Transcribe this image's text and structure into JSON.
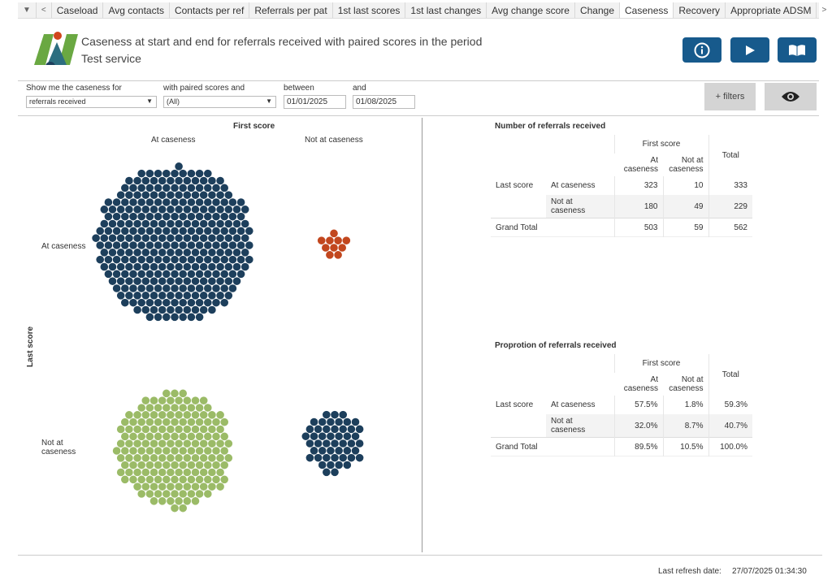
{
  "tabs": [
    "Caseload",
    "Avg contacts",
    "Contacts per ref",
    "Referrals per pat",
    "1st last scores",
    "1st last changes",
    "Avg change score",
    "Change",
    "Caseness",
    "Recovery",
    "Appropriate ADSM"
  ],
  "active_tab": "Caseness",
  "header": {
    "title": "Caseness at start and end for referrals received with paired scores in the period",
    "subtitle": "Test service"
  },
  "filters": {
    "f1_label": "Show me the caseness for",
    "f1_value": "referrals received",
    "f2_label": "with paired scores and",
    "f2_value": "(All)",
    "f3_label": "between",
    "f3_value": "01/01/2025",
    "f4_label": "and",
    "f4_value": "01/08/2025",
    "more_filters": "+ filters"
  },
  "chart": {
    "x_title": "First score",
    "y_title": "Last score",
    "col1": "At caseness",
    "col2": "Not at caseness",
    "row1": "At caseness",
    "row2": "Not at\ncaseness",
    "cells": [
      {
        "count": 323,
        "color": "#1d3f5c"
      },
      {
        "count": 10,
        "color": "#c2471e"
      },
      {
        "count": 180,
        "color": "#9bbb67"
      },
      {
        "count": 49,
        "color": "#1d3f5c"
      }
    ]
  },
  "counts": {
    "title": "Number of referrals received",
    "first_score": "First score",
    "col1": "At caseness",
    "col2": "Not at caseness",
    "total": "Total",
    "last_score": "Last score",
    "row1": "At caseness",
    "row2": "Not at caseness",
    "grand": "Grand Total",
    "r1": [
      "323",
      "10",
      "333"
    ],
    "r2": [
      "180",
      "49",
      "229"
    ],
    "g": [
      "503",
      "59",
      "562"
    ]
  },
  "props": {
    "title": "Proprotion of referrals received",
    "first_score": "First score",
    "col1": "At caseness",
    "col2": "Not at caseness",
    "total": "Total",
    "last_score": "Last score",
    "row1": "At caseness",
    "row2": "Not at caseness",
    "grand": "Grand Total",
    "r1": [
      "57.5%",
      "1.8%",
      "59.3%"
    ],
    "r2": [
      "32.0%",
      "8.7%",
      "40.7%"
    ],
    "g": [
      "89.5%",
      "10.5%",
      "100.0%"
    ]
  },
  "footer": {
    "label": "Last refresh date:",
    "value": "27/07/2025 01:34:30"
  }
}
